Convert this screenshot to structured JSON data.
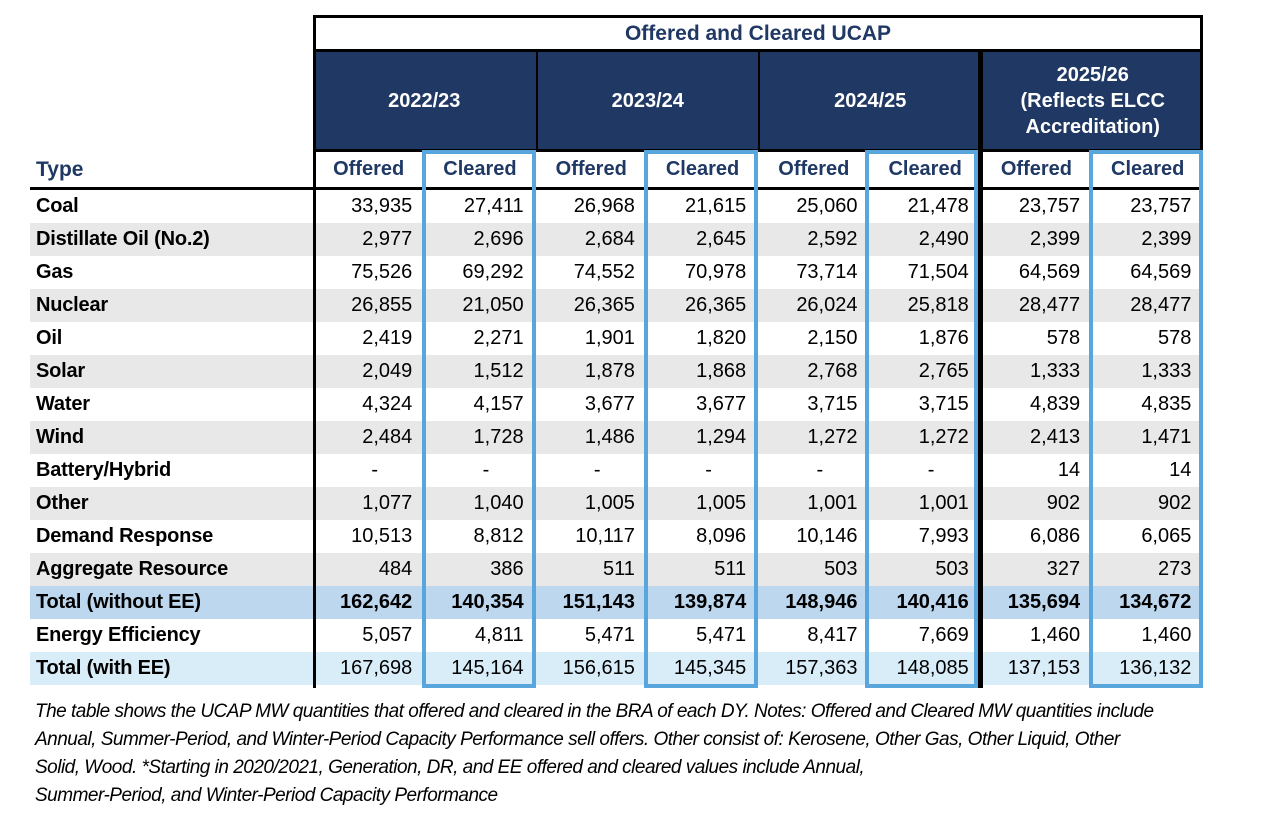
{
  "title": "Offered and Cleared UCAP",
  "type_label": "Type",
  "year_groups": [
    "2022/23",
    "2023/24",
    "2024/25",
    "2025/26\n(Reflects ELCC\nAccreditation)"
  ],
  "sub_headers": [
    "Offered",
    "Cleared",
    "Offered",
    "Cleared",
    "Offered",
    "Cleared",
    "Offered",
    "Cleared"
  ],
  "rows": [
    {
      "label": "Coal",
      "style": "plain",
      "values": [
        "33,935",
        "27,411",
        "26,968",
        "21,615",
        "25,060",
        "21,478",
        "23,757",
        "23,757"
      ]
    },
    {
      "label": "Distillate Oil (No.2)",
      "style": "alt",
      "values": [
        "2,977",
        "2,696",
        "2,684",
        "2,645",
        "2,592",
        "2,490",
        "2,399",
        "2,399"
      ]
    },
    {
      "label": "Gas",
      "style": "plain",
      "values": [
        "75,526",
        "69,292",
        "74,552",
        "70,978",
        "73,714",
        "71,504",
        "64,569",
        "64,569"
      ]
    },
    {
      "label": "Nuclear",
      "style": "alt",
      "values": [
        "26,855",
        "21,050",
        "26,365",
        "26,365",
        "26,024",
        "25,818",
        "28,477",
        "28,477"
      ]
    },
    {
      "label": "Oil",
      "style": "plain",
      "values": [
        "2,419",
        "2,271",
        "1,901",
        "1,820",
        "2,150",
        "1,876",
        "578",
        "578"
      ]
    },
    {
      "label": "Solar",
      "style": "alt",
      "values": [
        "2,049",
        "1,512",
        "1,878",
        "1,868",
        "2,768",
        "2,765",
        "1,333",
        "1,333"
      ]
    },
    {
      "label": "Water",
      "style": "plain",
      "values": [
        "4,324",
        "4,157",
        "3,677",
        "3,677",
        "3,715",
        "3,715",
        "4,839",
        "4,835"
      ]
    },
    {
      "label": "Wind",
      "style": "alt",
      "values": [
        "2,484",
        "1,728",
        "1,486",
        "1,294",
        "1,272",
        "1,272",
        "2,413",
        "1,471"
      ]
    },
    {
      "label": "Battery/Hybrid",
      "style": "plain",
      "values": [
        "-",
        "-",
        "-",
        "-",
        "-",
        "-",
        "14",
        "14"
      ]
    },
    {
      "label": "Other",
      "style": "alt",
      "values": [
        "1,077",
        "1,040",
        "1,005",
        "1,005",
        "1,001",
        "1,001",
        "902",
        "902"
      ]
    },
    {
      "label": "Demand Response",
      "style": "plain",
      "values": [
        "10,513",
        "8,812",
        "10,117",
        "8,096",
        "10,146",
        "7,993",
        "6,086",
        "6,065"
      ]
    },
    {
      "label": "Aggregate Resource",
      "style": "alt",
      "values": [
        "484",
        "386",
        "511",
        "511",
        "503",
        "503",
        "327",
        "273"
      ]
    },
    {
      "label": "Total (without EE)",
      "style": "total_bold",
      "values": [
        "162,642",
        "140,354",
        "151,143",
        "139,874",
        "148,946",
        "140,416",
        "135,694",
        "134,672"
      ]
    },
    {
      "label": "Energy Efficiency",
      "style": "plain",
      "values": [
        "5,057",
        "4,811",
        "5,471",
        "5,471",
        "8,417",
        "7,669",
        "1,460",
        "1,460"
      ]
    },
    {
      "label": "Total (with EE)",
      "style": "total_light",
      "values": [
        "167,698",
        "145,164",
        "156,615",
        "145,345",
        "157,363",
        "148,085",
        "137,153",
        "136,132"
      ]
    }
  ],
  "footnote_lines": [
    "The table shows the UCAP MW quantities that offered and cleared in the BRA of each DY. Notes: Offered and Cleared MW quantities include",
    "Annual, Summer-Period, and Winter-Period Capacity Performance sell offers. Other consist of: Kerosene, Other Gas, Other Liquid, Other",
    "Solid, Wood. *Starting in 2020/2021, Generation, DR, and EE offered and cleared values include Annual,",
    "Summer-Period, and Winter-Period Capacity Performance"
  ],
  "colors": {
    "header_navy": "#1F3864",
    "header_text_navy": "#1F3864",
    "cleared_highlight_blue": "#58A6DB",
    "row_stripe_gray": "#E8E8E8",
    "total_without_ee_row_blue": "#BDD7EE",
    "total_with_ee_row_light_blue": "#D9EDF9"
  }
}
